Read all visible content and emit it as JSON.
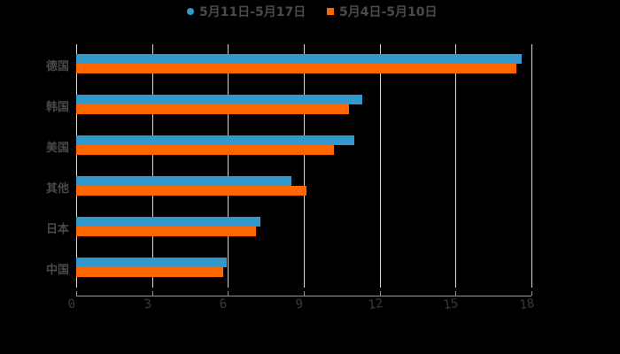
{
  "chart_data": {
    "type": "bar",
    "orientation": "horizontal",
    "title": "",
    "xlabel": "",
    "ylabel": "",
    "categories": [
      "德国",
      "韩国",
      "美国",
      "其他",
      "日本",
      "中国"
    ],
    "series": [
      {
        "name": "5月11日-5月17日",
        "color": "#3399cc",
        "marker": "circle",
        "values": [
          17.6,
          11.3,
          11.0,
          8.5,
          7.3,
          5.95
        ]
      },
      {
        "name": "5月4日-5月10日",
        "color": "#ff6600",
        "marker": "square",
        "values": [
          17.4,
          10.8,
          10.2,
          9.1,
          7.1,
          5.8
        ]
      }
    ],
    "xlim": [
      0,
      18
    ],
    "x_ticks": [
      "0",
      "3",
      "6",
      "9",
      "12",
      "15",
      "18"
    ],
    "grid": true,
    "legend_position": "top"
  },
  "legend": {
    "items": [
      {
        "label": "5月11日-5月17日",
        "color": "#3399cc"
      },
      {
        "label": "5月4日-5月10日",
        "color": "#ff6600"
      }
    ]
  },
  "colors": {
    "background": "#000000",
    "series1": "#3399cc",
    "series2": "#ff6600",
    "gridline": "#d8d8d8",
    "label_text": "#4a4a4a"
  }
}
